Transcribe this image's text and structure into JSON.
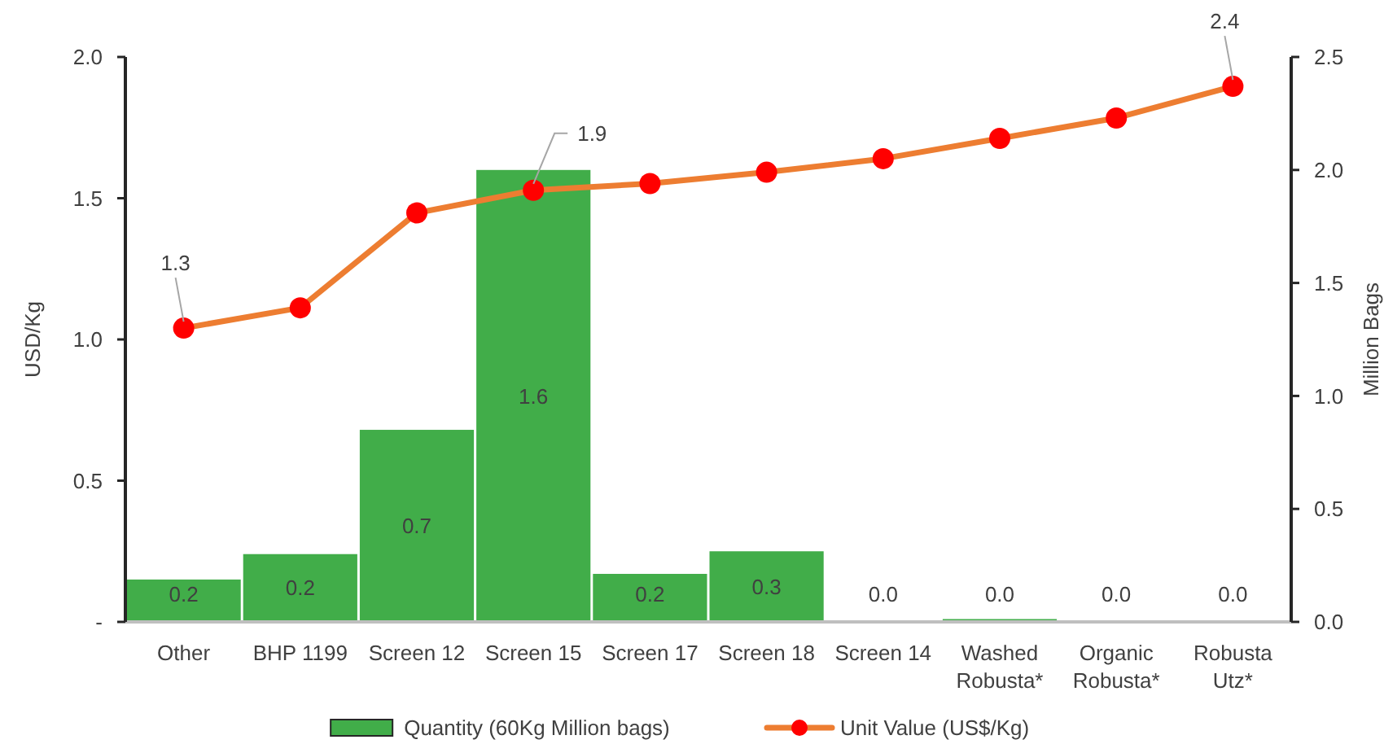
{
  "chart_data": {
    "type": "bar",
    "categories": [
      "Other",
      "BHP 1199",
      "Screen 12",
      "Screen 15",
      "Screen 17",
      "Screen 18",
      "Screen 14",
      "Washed Robusta*",
      "Organic Robusta*",
      "Robusta Utz*"
    ],
    "series": [
      {
        "name": "Quantity (60Kg Million bags)",
        "color": "#41ad49",
        "values": [
          0.15,
          0.24,
          0.68,
          1.6,
          0.17,
          0.25,
          0,
          0.01,
          0,
          0
        ],
        "value_labels": [
          "0.2",
          "0.2",
          "0.7",
          "1.6",
          "0.2",
          "0.3",
          "0.0",
          "0.0",
          "0.0",
          "0.0"
        ]
      },
      {
        "name": "Unit Value (US$/Kg)",
        "type": "line",
        "axis": "y2",
        "color": "#ed7d31",
        "colors": [
          "#ff0000",
          "#ff0000",
          "#ff0000",
          "#ff0000",
          "#ff0000",
          "#ff0000",
          "#ff0000",
          "#ff0000",
          "#ff0000",
          "#ff0000"
        ],
        "marker": "circle",
        "values": [
          1.3,
          1.39,
          1.81,
          1.91,
          1.94,
          1.99,
          2.05,
          2.14,
          2.23,
          2.37
        ],
        "value_labels": [
          "1.3",
          null,
          null,
          "1.9",
          null,
          null,
          null,
          null,
          null,
          "2.4"
        ]
      }
    ],
    "ylabel": "USD/Kg",
    "y2label": "Million Bags",
    "ylim": [
      0,
      2
    ],
    "yticks": [
      {
        "value": 0,
        "label": "-"
      },
      0.5,
      {
        "value": 1,
        "label": "1.0"
      },
      1.5,
      {
        "value": 2,
        "label": "2.0"
      }
    ],
    "y2lim": [
      0,
      2.5
    ],
    "y2ticks": [
      {
        "value": 0,
        "label": "0.0"
      },
      0.5,
      {
        "value": 1,
        "label": "1.0"
      },
      1.5,
      {
        "value": 2,
        "label": "2.0"
      },
      2.5
    ],
    "legend": "bottom"
  }
}
